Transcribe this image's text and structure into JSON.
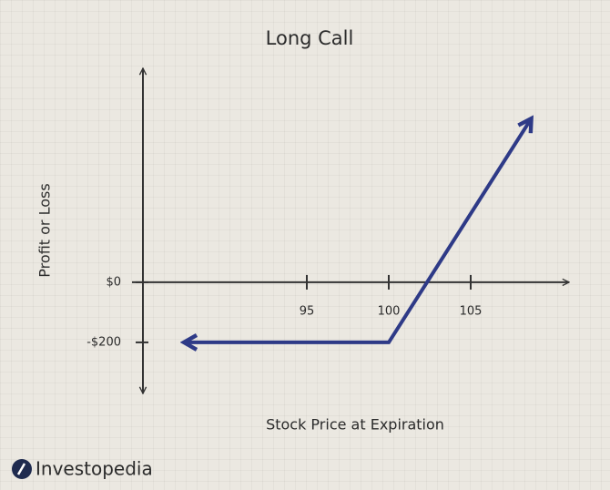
{
  "chart_data": {
    "type": "line",
    "title": "Long Call",
    "x_label": "Stock Price at Expiration",
    "y_label": "Profit or Loss",
    "x": [
      87.5,
      100,
      108.7
    ],
    "series": [
      {
        "name": "Long Call",
        "color": "#2e3a87",
        "values": [
          -200,
          -200,
          545
        ]
      }
    ],
    "xlim": [
      85,
      111
    ],
    "ylim": [
      -370,
      712
    ],
    "xticks": [
      95,
      100,
      105
    ],
    "yticks": [
      {
        "value": 0,
        "label": "$0"
      },
      {
        "value": -200,
        "label": "-$200"
      }
    ],
    "grid": false
  },
  "footer": {
    "brand": "Investopedia"
  }
}
